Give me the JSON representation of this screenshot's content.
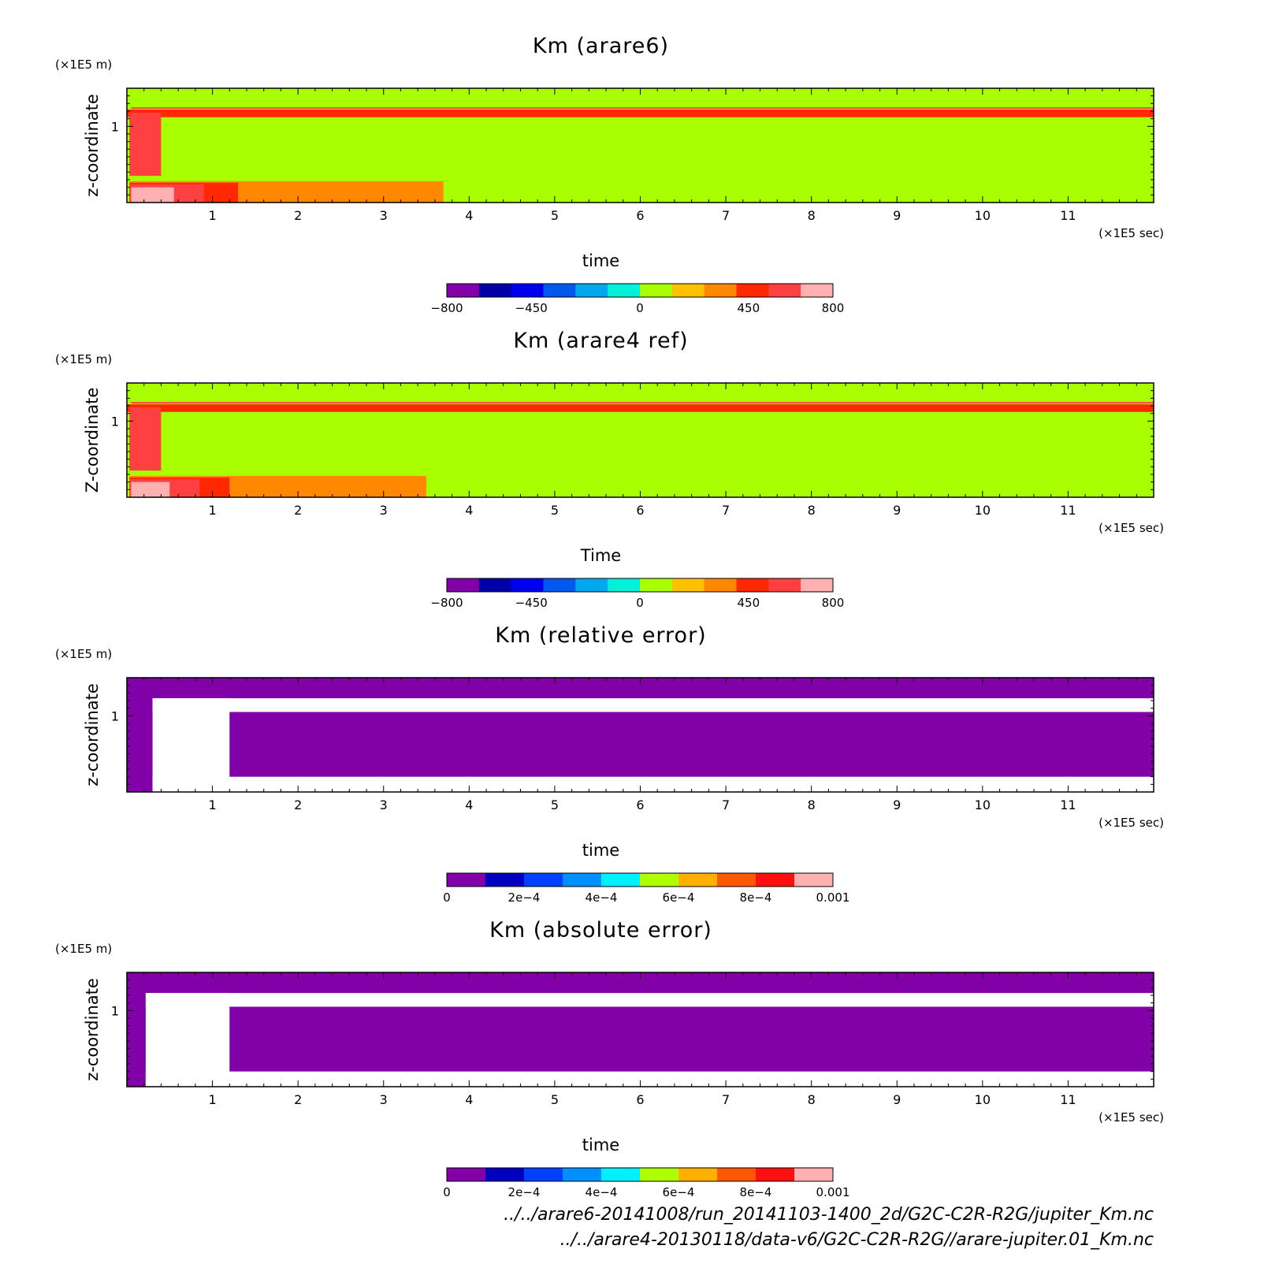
{
  "colors": {
    "diverging": [
      "#8100a8",
      "#0000a8",
      "#0000f0",
      "#0058f0",
      "#00a8f0",
      "#00f0d8",
      "#a8ff00",
      "#ffc000",
      "#ff8800",
      "#ff2800",
      "#ff4040",
      "#ffb0b0"
    ],
    "sequential": [
      "#8100a8",
      "#0000c0",
      "#0040ff",
      "#0090ff",
      "#00f0ff",
      "#b0ff00",
      "#ffb000",
      "#ff5800",
      "#ff1010",
      "#ffb0b0"
    ],
    "background_fill": "#ffffff"
  },
  "chart_data": [
    {
      "type": "heatmap",
      "title": "Km (arare6)",
      "xlabel": "time",
      "ylabel": "z-coordinate",
      "x_unit": "(×1E5 sec)",
      "y_unit": "(×1E5 m)",
      "xlim": [
        0,
        12
      ],
      "ylim": [
        0,
        1.5
      ],
      "x_ticks": [
        "1",
        "2",
        "3",
        "4",
        "5",
        "6",
        "7",
        "8",
        "9",
        "10",
        "11"
      ],
      "y_ticks": [
        "1"
      ],
      "colorbar": {
        "palette": "diverging",
        "range": [
          -800,
          800
        ],
        "tick_labels": [
          "-800",
          "-450",
          "0",
          "450",
          "800"
        ]
      },
      "field": {
        "background_value": 100,
        "regions": [
          {
            "x": [
              0,
              12
            ],
            "y": [
              1.22,
              1.5
            ],
            "value": 100
          },
          {
            "x": [
              0,
              12
            ],
            "y": [
              1.12,
              1.22
            ],
            "value": 400
          },
          {
            "x": [
              0.05,
              12
            ],
            "y": [
              1.23,
              1.25
            ],
            "value": 550
          },
          {
            "x": [
              0.03,
              0.4
            ],
            "y": [
              0.35,
              1.18
            ],
            "value": 650
          },
          {
            "x": [
              0.03,
              3.7
            ],
            "y": [
              0,
              0.28
            ],
            "value": 300
          },
          {
            "x": [
              0.03,
              1.3
            ],
            "y": [
              0,
              0.26
            ],
            "value": 450
          },
          {
            "x": [
              0.03,
              0.9
            ],
            "y": [
              0,
              0.24
            ],
            "value": 650
          },
          {
            "x": [
              0.05,
              0.55
            ],
            "y": [
              0,
              0.2
            ],
            "value": 780
          }
        ]
      }
    },
    {
      "type": "heatmap",
      "title": "Km (arare4 ref)",
      "xlabel": "Time",
      "ylabel": "Z-coordinate",
      "x_unit": "(×1E5 sec)",
      "y_unit": "(×1E5 m)",
      "xlim": [
        0,
        12
      ],
      "ylim": [
        0,
        1.5
      ],
      "x_ticks": [
        "1",
        "2",
        "3",
        "4",
        "5",
        "6",
        "7",
        "8",
        "9",
        "10",
        "11"
      ],
      "y_ticks": [
        "1"
      ],
      "colorbar": {
        "palette": "diverging",
        "range": [
          -800,
          800
        ],
        "tick_labels": [
          "-800",
          "-450",
          "0",
          "450",
          "800"
        ]
      },
      "field": {
        "background_value": 100,
        "regions": [
          {
            "x": [
              0,
              12
            ],
            "y": [
              1.22,
              1.5
            ],
            "value": 100
          },
          {
            "x": [
              0,
              12
            ],
            "y": [
              1.12,
              1.22
            ],
            "value": 400
          },
          {
            "x": [
              0.05,
              12
            ],
            "y": [
              1.23,
              1.25
            ],
            "value": 550
          },
          {
            "x": [
              0.03,
              0.4
            ],
            "y": [
              0.35,
              1.18
            ],
            "value": 650
          },
          {
            "x": [
              0.03,
              3.5
            ],
            "y": [
              0,
              0.28
            ],
            "value": 300
          },
          {
            "x": [
              0.03,
              1.2
            ],
            "y": [
              0,
              0.26
            ],
            "value": 450
          },
          {
            "x": [
              0.03,
              0.85
            ],
            "y": [
              0,
              0.24
            ],
            "value": 650
          },
          {
            "x": [
              0.05,
              0.5
            ],
            "y": [
              0,
              0.2
            ],
            "value": 780
          }
        ]
      }
    },
    {
      "type": "heatmap",
      "title": "Km (relative error)",
      "xlabel": "time",
      "ylabel": "z-coordinate",
      "x_unit": "(×1E5 sec)",
      "y_unit": "(×1E5 m)",
      "xlim": [
        0,
        12
      ],
      "ylim": [
        0,
        1.5
      ],
      "x_ticks": [
        "1",
        "2",
        "3",
        "4",
        "5",
        "6",
        "7",
        "8",
        "9",
        "10",
        "11"
      ],
      "y_ticks": [
        "1"
      ],
      "colorbar": {
        "palette": "sequential",
        "range": [
          0,
          0.001
        ],
        "tick_labels": [
          "0",
          "2e-4",
          "4e-4",
          "6e-4",
          "8e-4",
          "0.001"
        ]
      },
      "field": {
        "background_value": 0,
        "regions": [
          {
            "x": [
              0.3,
              12
            ],
            "y": [
              1.05,
              1.23
            ],
            "value": null
          },
          {
            "x": [
              0.3,
              12
            ],
            "y": [
              0,
              0.2
            ],
            "value": null
          },
          {
            "x": [
              0.3,
              1.2
            ],
            "y": [
              0,
              1.23
            ],
            "value": null
          }
        ]
      }
    },
    {
      "type": "heatmap",
      "title": "Km (absolute error)",
      "xlabel": "time",
      "ylabel": "z-coordinate",
      "x_unit": "(×1E5 sec)",
      "y_unit": "(×1E5 m)",
      "xlim": [
        0,
        12
      ],
      "ylim": [
        0,
        1.5
      ],
      "x_ticks": [
        "1",
        "2",
        "3",
        "4",
        "5",
        "6",
        "7",
        "8",
        "9",
        "10",
        "11"
      ],
      "y_ticks": [
        "1"
      ],
      "colorbar": {
        "palette": "sequential",
        "range": [
          0,
          0.001
        ],
        "tick_labels": [
          "0",
          "2e-4",
          "4e-4",
          "6e-4",
          "8e-4",
          "0.001"
        ]
      },
      "field": {
        "background_value": 0,
        "regions": [
          {
            "x": [
              0.22,
              12
            ],
            "y": [
              1.05,
              1.23
            ],
            "value": null
          },
          {
            "x": [
              0.22,
              12
            ],
            "y": [
              0,
              0.2
            ],
            "value": null
          },
          {
            "x": [
              0.22,
              1.2
            ],
            "y": [
              0,
              1.23
            ],
            "value": null
          }
        ]
      }
    }
  ],
  "footer": {
    "path1": "../../arare6-20141008/run_20141103-1400_2d/G2C-C2R-R2G/jupiter_Km.nc",
    "path2": "../../arare4-20130118/data-v6/G2C-C2R-R2G//arare-jupiter.01_Km.nc"
  }
}
